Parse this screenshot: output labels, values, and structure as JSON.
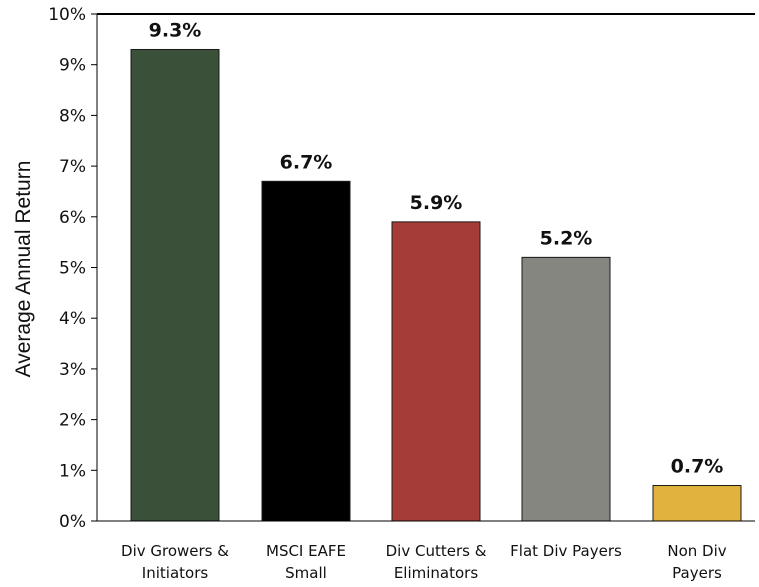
{
  "chart_data": {
    "type": "bar",
    "title": "",
    "xlabel": "",
    "ylabel": "Average Annual Return",
    "ylim": [
      0,
      10
    ],
    "y_ticks": [
      "0%",
      "1%",
      "2%",
      "3%",
      "4%",
      "5%",
      "6%",
      "7%",
      "8%",
      "9%",
      "10%"
    ],
    "categories": [
      [
        "Div Growers &",
        "Initiators"
      ],
      [
        "MSCI EAFE",
        "Small"
      ],
      [
        "Div Cutters &",
        "Eliminators"
      ],
      [
        "Flat Div Payers"
      ],
      [
        "Non Div",
        "Payers"
      ]
    ],
    "values": [
      9.3,
      6.7,
      5.9,
      5.2,
      0.7
    ],
    "data_labels": [
      "9.3%",
      "6.7%",
      "5.9%",
      "5.2%",
      "0.7%"
    ],
    "bar_colors": [
      "#3a5039",
      "#000000",
      "#a63c38",
      "#85867f",
      "#e2b23f"
    ],
    "grid": false,
    "legend": "none"
  }
}
